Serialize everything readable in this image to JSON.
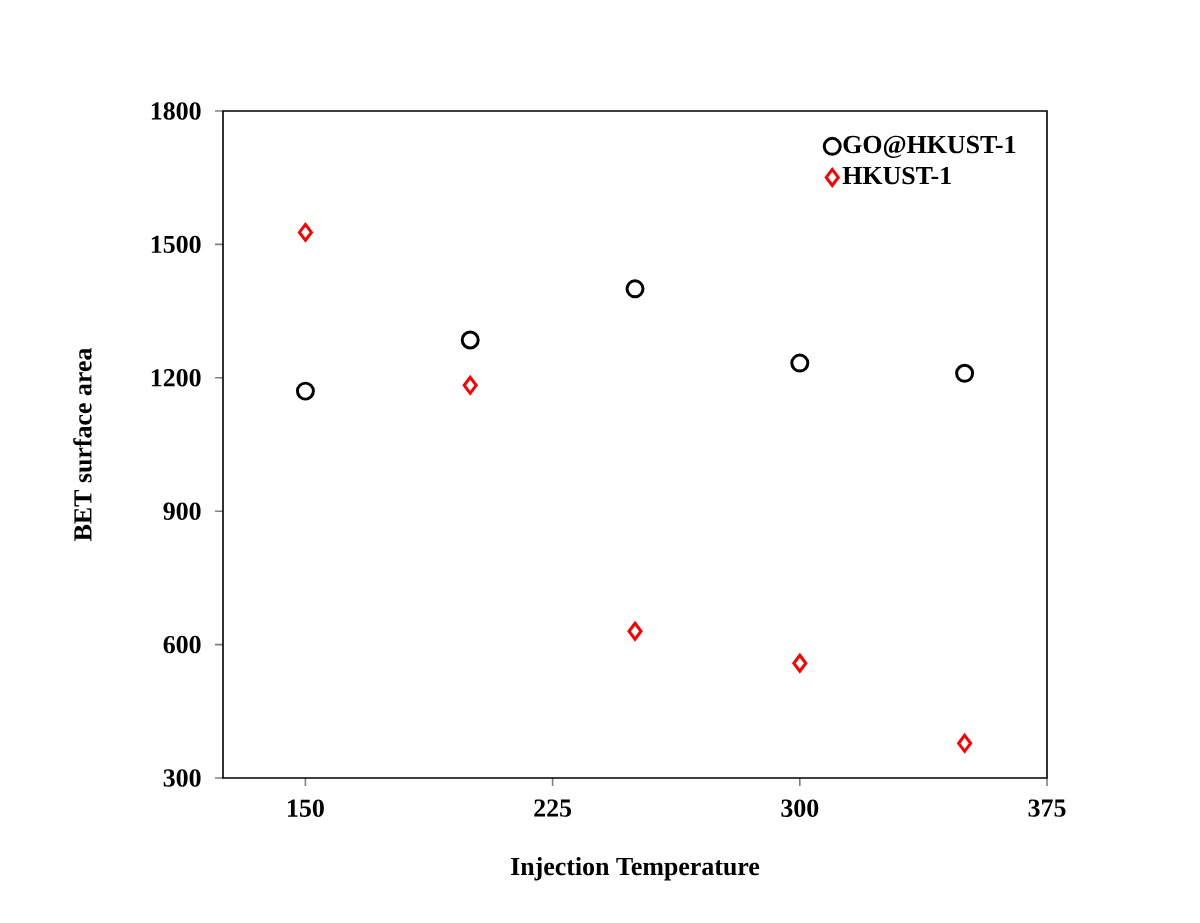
{
  "chart_data": {
    "type": "scatter",
    "xlabel": "Injection Temperature",
    "ylabel": "BET surface area",
    "x": [
      150,
      200,
      250,
      300,
      350
    ],
    "series": [
      {
        "name": "GO@HKUST-1",
        "color": "#000000",
        "marker": "circle",
        "values": [
          1170,
          1285,
          1400,
          1233,
          1210
        ]
      },
      {
        "name": "HKUST-1",
        "color": "#ff0000",
        "marker": "diamond",
        "values": [
          1527,
          1183,
          630,
          558,
          378
        ]
      }
    ],
    "xlim": [
      125,
      375
    ],
    "xticks": [
      150,
      225,
      300,
      375
    ],
    "ylim": [
      300,
      1800
    ],
    "yticks": [
      300,
      600,
      900,
      1200,
      1500,
      1800
    ],
    "grid": false,
    "legend": "top right"
  }
}
